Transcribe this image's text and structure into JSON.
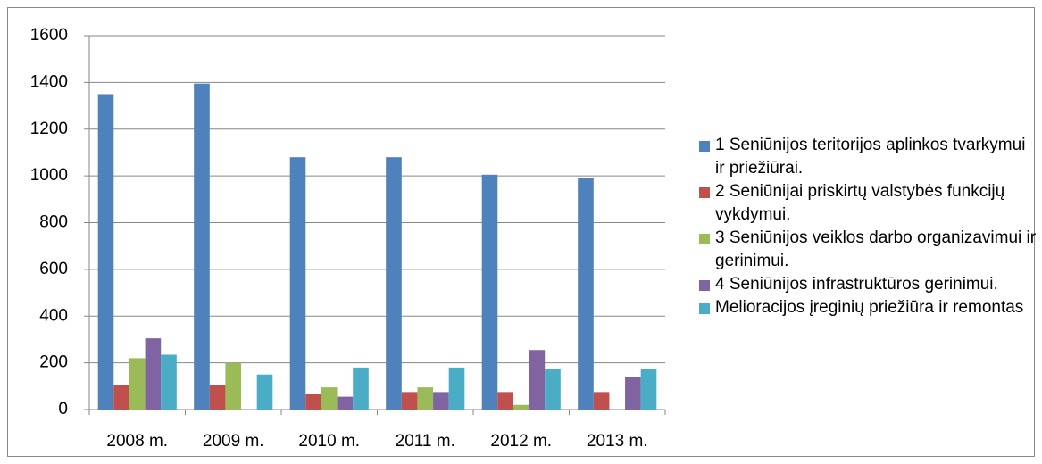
{
  "chart_data": {
    "type": "bar",
    "categories": [
      "2008 m.",
      "2009 m.",
      "2010 m.",
      "2011 m.",
      "2012 m.",
      "2013 m."
    ],
    "series": [
      {
        "name": "1 Seniūnijos teritorijos aplinkos tvarkymui ir priežiūrai.",
        "color": "#4f81bd",
        "values": [
          1350,
          1395,
          1080,
          1080,
          1005,
          990
        ]
      },
      {
        "name": "2 Seniūnijai priskirtų valstybės funkcijų vykdymui.",
        "color": "#c0504d",
        "values": [
          105,
          105,
          65,
          75,
          75,
          75
        ]
      },
      {
        "name": "3 Seniūnijos veiklos darbo organizavimui ir gerinimui.",
        "color": "#9bbb59",
        "values": [
          220,
          200,
          95,
          95,
          20,
          0
        ]
      },
      {
        "name": "4 Seniūnijos infrastruktūros gerinimui.",
        "color": "#8064a2",
        "values": [
          305,
          0,
          55,
          75,
          255,
          140
        ]
      },
      {
        "name": "Melioracijos įreginių priežiūra ir remontas",
        "color": "#4bacc6",
        "values": [
          235,
          150,
          180,
          180,
          175,
          175
        ]
      }
    ],
    "ylim": [
      0,
      1600
    ],
    "yticks": [
      0,
      200,
      400,
      600,
      800,
      1000,
      1200,
      1400,
      1600
    ],
    "grid": true,
    "legend": "right"
  }
}
